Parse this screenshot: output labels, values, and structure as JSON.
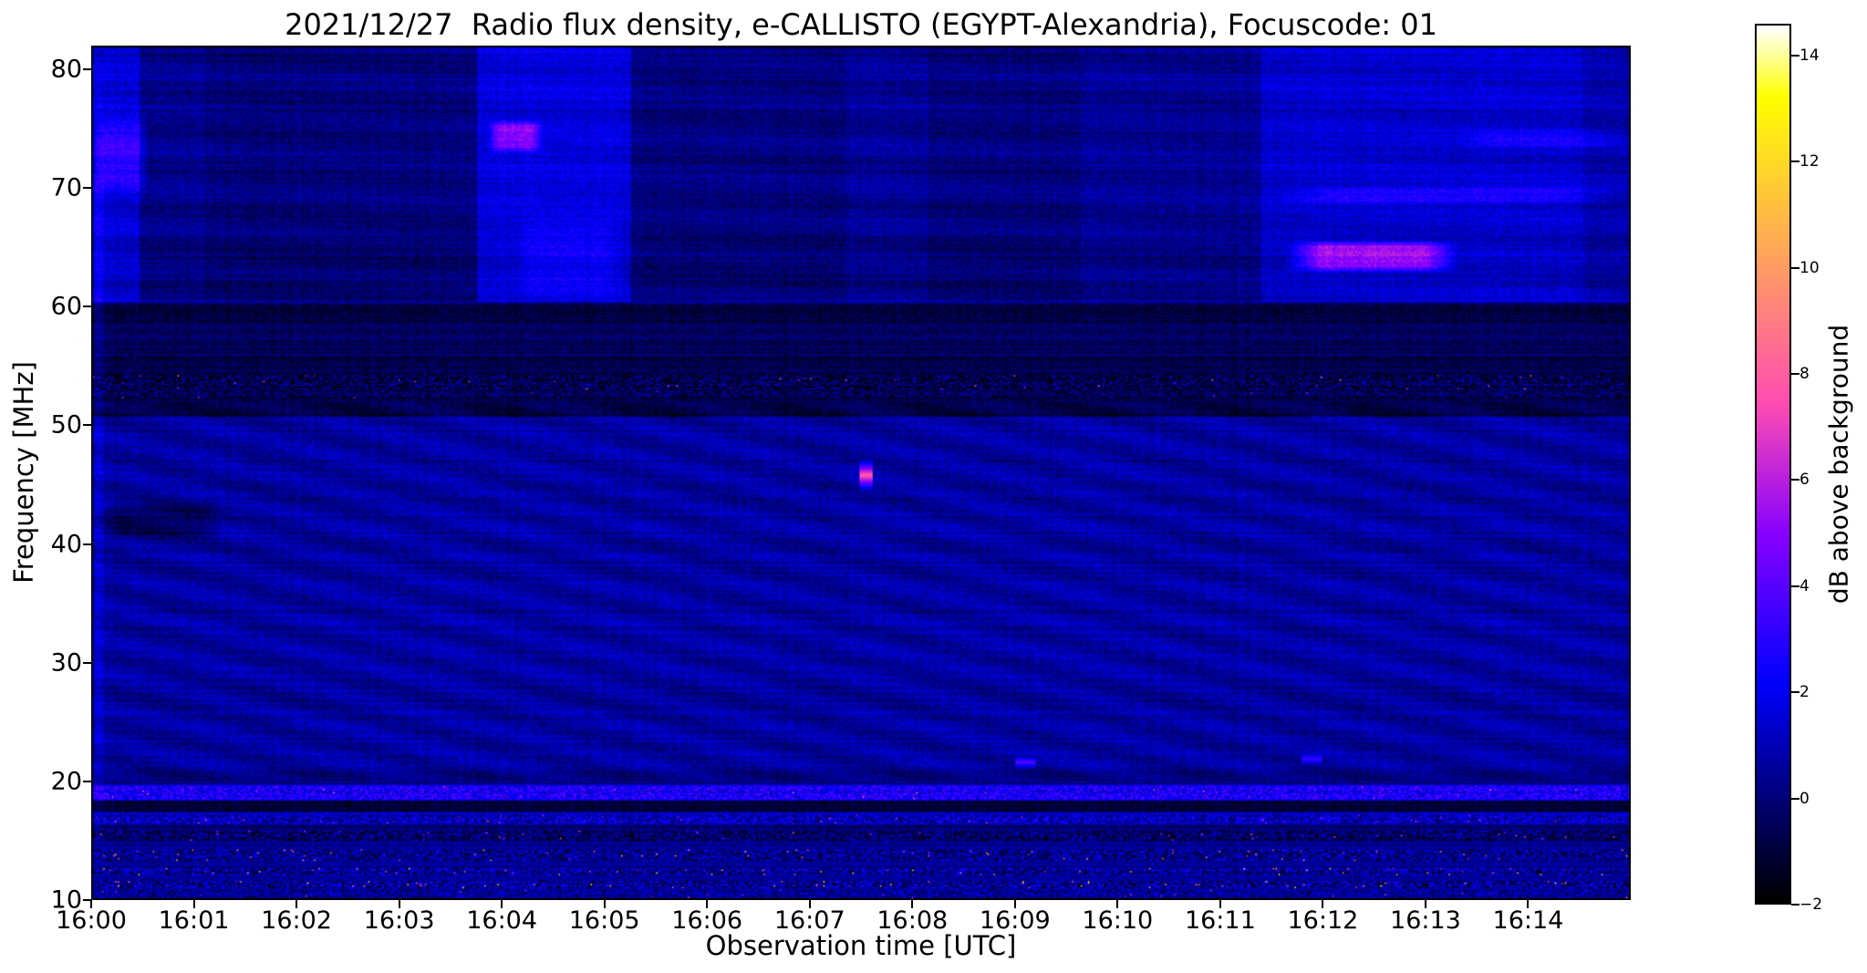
{
  "chart_data": {
    "type": "heatmap",
    "title": "2021/12/27  Radio flux density, e-CALLISTO (EGYPT-Alexandria), Focuscode: 01",
    "xlabel": "Observation time [UTC]",
    "ylabel": "Frequency [MHz]",
    "x_ticks": [
      "16:00",
      "16:01",
      "16:02",
      "16:03",
      "16:04",
      "16:05",
      "16:06",
      "16:07",
      "16:08",
      "16:09",
      "16:10",
      "16:11",
      "16:12",
      "16:13",
      "16:14"
    ],
    "x_range_minutes": [
      0,
      15
    ],
    "y_ticks": [
      10,
      20,
      30,
      40,
      50,
      60,
      70,
      80
    ],
    "y_range": [
      10,
      82
    ],
    "colorbar": {
      "label": "dB above background",
      "ticks": [
        -2,
        0,
        2,
        4,
        6,
        8,
        10,
        12,
        14
      ],
      "range": [
        -2,
        14.6
      ],
      "colormap": "gnuplot2"
    },
    "grid": false,
    "legend": "none",
    "seed": 1234,
    "background_db": 0.4,
    "noise_db": 0.9,
    "upper_band": {
      "f": [
        60.5,
        82
      ]
    },
    "bands": [
      {
        "f": [
          60.5,
          82.0
        ],
        "db": 0.1
      },
      {
        "f": [
          61.0,
          66.2
        ],
        "db": -0.2
      },
      {
        "f": [
          58.6,
          60.4
        ],
        "db": -1.3
      },
      {
        "f": [
          55.8,
          58.6
        ],
        "db": -0.9
      },
      {
        "f": [
          50.8,
          55.8
        ],
        "db": -1.2
      },
      {
        "f": [
          20.8,
          50.8
        ],
        "db": 0.2
      },
      {
        "f": [
          19.6,
          20.8
        ],
        "db": -0.3
      },
      {
        "f": [
          18.3,
          19.6
        ],
        "db": 2.0
      },
      {
        "f": [
          17.3,
          18.3
        ],
        "db": -1.6
      },
      {
        "f": [
          16.2,
          17.3
        ],
        "db": 0.6
      },
      {
        "f": [
          14.8,
          16.2
        ],
        "db": -0.6
      },
      {
        "f": [
          10.0,
          14.8
        ],
        "db": 0.1
      }
    ],
    "upper_segments": [
      {
        "t": [
          0.0,
          0.45
        ],
        "db": 1.0
      },
      {
        "t": [
          0.45,
          1.1
        ],
        "db": -0.2
      },
      {
        "t": [
          1.1,
          3.75
        ],
        "db": -0.5
      },
      {
        "t": [
          3.75,
          5.25
        ],
        "db": 1.1
      },
      {
        "t": [
          5.25,
          7.35
        ],
        "db": -0.45
      },
      {
        "t": [
          7.35,
          8.15
        ],
        "db": -0.1
      },
      {
        "t": [
          8.15,
          9.65
        ],
        "db": -0.5
      },
      {
        "t": [
          9.65,
          11.4
        ],
        "db": -0.15
      },
      {
        "t": [
          11.4,
          14.55
        ],
        "db": 0.85
      },
      {
        "t": [
          14.55,
          15.0
        ],
        "db": 0.35
      }
    ],
    "striations": {
      "f": [
        20,
        52
      ],
      "amp": 0.4,
      "tf": 0.7,
      "ff": 0.35
    },
    "patches": [
      {
        "t": [
          11.65,
          13.35
        ],
        "f": [
          62.9,
          65.7
        ],
        "db": 4.2
      },
      {
        "t": [
          3.85,
          4.4
        ],
        "f": [
          73.0,
          75.9
        ],
        "db": 3.2
      },
      {
        "t": [
          11.5,
          15.0
        ],
        "f": [
          68.7,
          70.3
        ],
        "db": 1.4
      },
      {
        "t": [
          0.0,
          0.55
        ],
        "f": [
          69.5,
          76.5
        ],
        "db": 1.6
      },
      {
        "t": [
          0.0,
          1.3
        ],
        "f": [
          40.2,
          43.6
        ],
        "db": -1.2
      },
      {
        "t": [
          4.1,
          5.2
        ],
        "f": [
          60.5,
          68.0
        ],
        "db": 0.8
      },
      {
        "t": [
          13.3,
          15.0
        ],
        "f": [
          73.4,
          75.2
        ],
        "db": 0.9
      },
      {
        "t": [
          0.0,
          0.12
        ],
        "f": [
          10.0,
          82.0
        ],
        "db": 0.8
      }
    ],
    "speckle_rows": [
      {
        "f": [
          53.1,
          54.3
        ],
        "amp": 1.9,
        "hot_p": 0.004,
        "hot_db": [
          4,
          9
        ]
      },
      {
        "f": [
          52.3,
          52.9
        ],
        "amp": 1.2,
        "hot_p": 0.001,
        "hot_db": [
          4,
          7
        ]
      },
      {
        "f": [
          18.4,
          19.5
        ],
        "amp": 1.6,
        "hot_p": 0.006,
        "hot_db": [
          4,
          9
        ]
      },
      {
        "f": [
          16.3,
          17.1
        ],
        "amp": 1.9,
        "hot_p": 0.006,
        "hot_db": [
          4,
          8
        ]
      },
      {
        "f": [
          14.9,
          15.7
        ],
        "amp": 1.8,
        "hot_p": 0.005,
        "hot_db": [
          4,
          8
        ]
      },
      {
        "f": [
          13.2,
          14.1
        ],
        "amp": 2.0,
        "hot_p": 0.009,
        "hot_db": [
          5,
          11
        ]
      },
      {
        "f": [
          11.9,
          12.6
        ],
        "amp": 2.1,
        "hot_p": 0.011,
        "hot_db": [
          5,
          12
        ]
      },
      {
        "f": [
          10.8,
          11.5
        ],
        "amp": 2.3,
        "hot_p": 0.014,
        "hot_db": [
          6,
          13
        ]
      },
      {
        "f": [
          10.0,
          10.7
        ],
        "amp": 1.4,
        "hot_p": 0.005,
        "hot_db": [
          4,
          8
        ]
      }
    ],
    "events": [
      {
        "t": 7.55,
        "f": 45.8,
        "dt": 0.06,
        "df": 1.4,
        "db": 8.0
      },
      {
        "t": 9.1,
        "f": 21.5,
        "dt": 0.1,
        "df": 0.6,
        "db": 4.0
      },
      {
        "t": 11.9,
        "f": 21.8,
        "dt": 0.1,
        "df": 0.6,
        "db": 3.5
      }
    ]
  }
}
